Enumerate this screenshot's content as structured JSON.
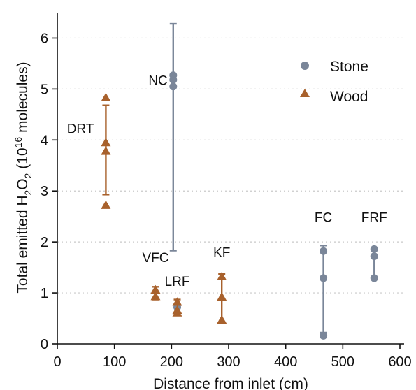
{
  "chart_data": {
    "type": "scatter",
    "xlabel": "Distance from inlet (cm)",
    "ylabel": {
      "prefix": "Total emitted H",
      "sub1": "2",
      "mid": "O",
      "sub2": "2",
      "paren_open": " (10",
      "sup": "16",
      "suffix": " molecules)"
    },
    "xlim": [
      0,
      600
    ],
    "ylim": [
      0,
      6.5
    ],
    "xticks": [
      "0",
      "100",
      "200",
      "300",
      "400",
      "500",
      "600"
    ],
    "yticks": [
      "0",
      "1",
      "2",
      "3",
      "4",
      "5",
      "6"
    ],
    "grid": "horizontal dotted",
    "legend_position": "top-right",
    "colors": {
      "stone": "#7a8699",
      "wood": "#a8612c"
    },
    "series": [
      {
        "name": "Stone",
        "marker": "circle",
        "points": [
          {
            "x": 203,
            "y": 5.27
          },
          {
            "x": 203,
            "y": 5.18
          },
          {
            "x": 203,
            "y": 5.05
          },
          {
            "x": 210,
            "y": 0.72
          },
          {
            "x": 466,
            "y": 1.82
          },
          {
            "x": 466,
            "y": 1.29
          },
          {
            "x": 466,
            "y": 0.16
          },
          {
            "x": 555,
            "y": 1.86
          },
          {
            "x": 555,
            "y": 1.72
          },
          {
            "x": 555,
            "y": 1.29
          }
        ],
        "error_bars": [
          {
            "x": 203,
            "low": 1.83,
            "high": 6.28
          },
          {
            "x": 466,
            "low": 0.22,
            "high": 1.93
          },
          {
            "x": 555,
            "low": 1.29,
            "high": 1.88
          }
        ]
      },
      {
        "name": "Wood",
        "marker": "triangle",
        "points": [
          {
            "x": 85,
            "y": 4.83
          },
          {
            "x": 85,
            "y": 3.95
          },
          {
            "x": 85,
            "y": 3.78
          },
          {
            "x": 85,
            "y": 2.72
          },
          {
            "x": 172,
            "y": 1.06
          },
          {
            "x": 172,
            "y": 0.93
          },
          {
            "x": 210,
            "y": 0.82
          },
          {
            "x": 210,
            "y": 0.66
          },
          {
            "x": 210,
            "y": 0.61
          },
          {
            "x": 288,
            "y": 1.32
          },
          {
            "x": 288,
            "y": 0.92
          },
          {
            "x": 288,
            "y": 0.47
          }
        ],
        "error_bars": [
          {
            "x": 85,
            "low": 2.93,
            "high": 4.68
          },
          {
            "x": 172,
            "low": 0.87,
            "high": 1.12
          },
          {
            "x": 210,
            "low": 0.58,
            "high": 0.87
          },
          {
            "x": 288,
            "low": 0.43,
            "high": 1.37
          }
        ]
      }
    ],
    "annotations": [
      {
        "text": "NC",
        "x": 203,
        "y": 5.18
      },
      {
        "text": "DRT",
        "x": 85,
        "y": 4.0
      },
      {
        "text": "VFC",
        "x": 172,
        "y": 1.3
      },
      {
        "text": "LRF",
        "x": 210,
        "y": 1.03
      },
      {
        "text": "KF",
        "x": 288,
        "y": 1.6
      },
      {
        "text": "FC",
        "x": 466,
        "y": 2.2
      },
      {
        "text": "FRF",
        "x": 555,
        "y": 2.2
      }
    ]
  }
}
